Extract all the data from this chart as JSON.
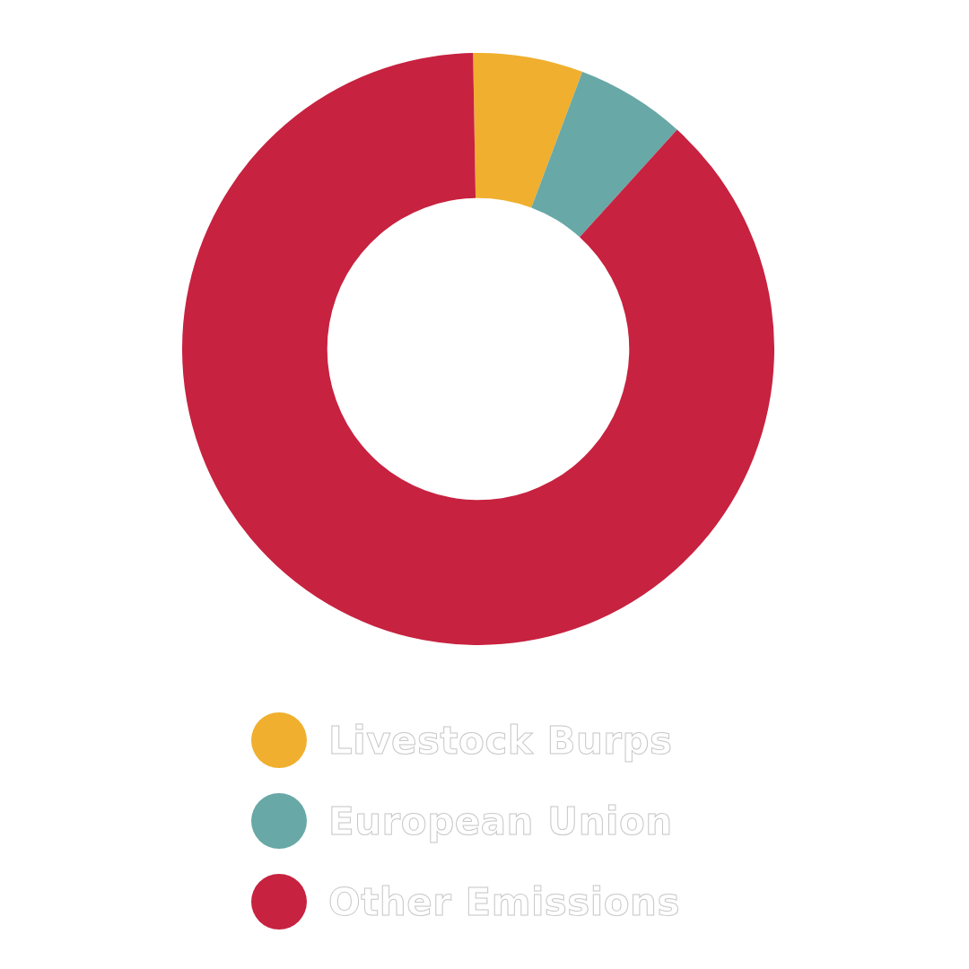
{
  "chart_data": {
    "type": "donut",
    "categories": [
      "Livestock Burps",
      "European Union",
      "Other Emissions"
    ],
    "values": [
      6,
      6,
      88
    ],
    "colors": [
      "#f0af2e",
      "#68a8a6",
      "#c72240"
    ],
    "legend": "bottom"
  }
}
